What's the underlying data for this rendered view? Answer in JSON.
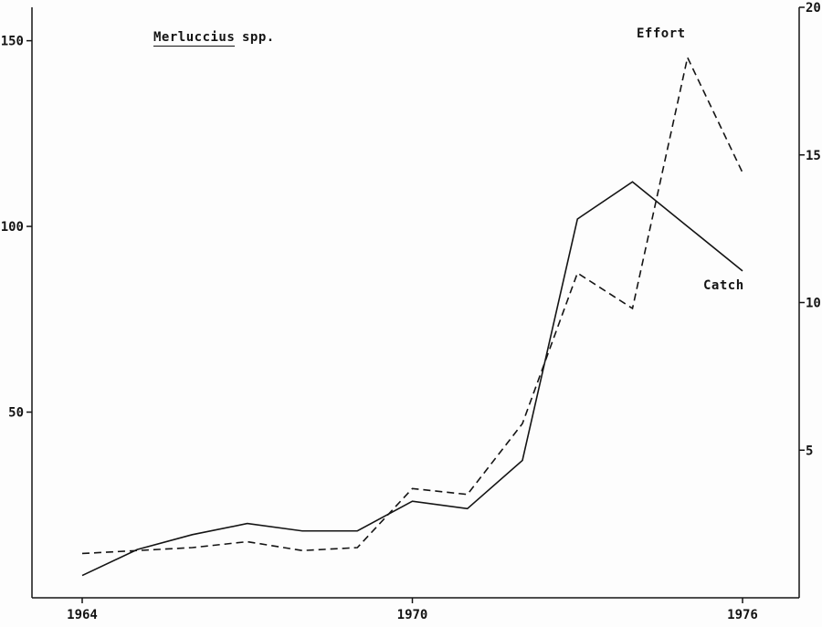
{
  "title": {
    "main": "Merluccius",
    "suffix": "spp."
  },
  "labels": {
    "effort": "Effort",
    "catch": "Catch"
  },
  "chart_data": {
    "type": "line",
    "title": "Merluccius spp.",
    "x": [
      1964,
      1965,
      1966,
      1967,
      1968,
      1969,
      1970,
      1971,
      1972,
      1973,
      1974,
      1975,
      1976
    ],
    "x_ticks": [
      1964,
      1970,
      1976
    ],
    "left_axis": {
      "label": "",
      "ticks": [
        50,
        100,
        150
      ],
      "min": 0,
      "max": 159
    },
    "right_axis": {
      "label": "",
      "ticks": [
        5,
        10,
        15,
        20
      ],
      "min": 0,
      "max": 20
    },
    "grid": false,
    "legend": "annotations-on-plot",
    "series": [
      {
        "name": "Catch",
        "axis": "left",
        "line": "solid",
        "values": [
          6,
          13,
          17,
          20,
          18,
          18,
          26,
          24,
          37,
          102,
          112,
          100,
          88
        ]
      },
      {
        "name": "Effort",
        "axis": "right",
        "line": "dashed",
        "values": [
          1.5,
          1.6,
          1.7,
          1.9,
          1.6,
          1.7,
          3.7,
          3.5,
          5.9,
          11.0,
          9.8,
          18.3,
          14.4
        ]
      }
    ],
    "colors": {
      "line": "#141414",
      "background": "#fdfdfd"
    }
  }
}
